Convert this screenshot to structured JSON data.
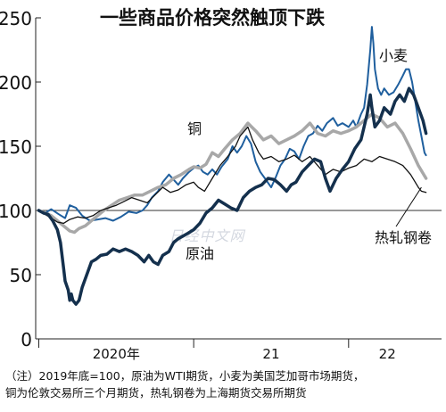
{
  "chart_data": {
    "type": "line",
    "title": "一些商品价格突然触顶下跌",
    "xlabel": "",
    "ylabel": "",
    "ylim": [
      0,
      250
    ],
    "yticks": [
      0,
      50,
      100,
      150,
      200,
      250
    ],
    "x_tick_labels": [
      "2020年",
      "21",
      "22"
    ],
    "x_tick_positions": [
      2020.5,
      2021.5,
      2022.25
    ],
    "xlim": [
      2019.98,
      2022.6
    ],
    "baseline": 100,
    "grid": false,
    "legend": "inline",
    "watermark": "日经中文网",
    "series": [
      {
        "name": "小麦",
        "color": "#1f5f9e",
        "width": 2.0,
        "points": [
          [
            2020.0,
            100
          ],
          [
            2020.04,
            98
          ],
          [
            2020.08,
            101
          ],
          [
            2020.13,
            97
          ],
          [
            2020.17,
            94
          ],
          [
            2020.2,
            104
          ],
          [
            2020.24,
            102
          ],
          [
            2020.28,
            96
          ],
          [
            2020.33,
            92
          ],
          [
            2020.38,
            93
          ],
          [
            2020.43,
            94
          ],
          [
            2020.48,
            92
          ],
          [
            2020.53,
            95
          ],
          [
            2020.58,
            99
          ],
          [
            2020.63,
            98
          ],
          [
            2020.67,
            100
          ],
          [
            2020.7,
            104
          ],
          [
            2020.73,
            110
          ],
          [
            2020.77,
            115
          ],
          [
            2020.8,
            122
          ],
          [
            2020.84,
            128
          ],
          [
            2020.87,
            124
          ],
          [
            2020.9,
            120
          ],
          [
            2020.93,
            125
          ],
          [
            2020.97,
            130
          ],
          [
            2021.0,
            133
          ],
          [
            2021.03,
            135
          ],
          [
            2021.06,
            130
          ],
          [
            2021.09,
            128
          ],
          [
            2021.12,
            132
          ],
          [
            2021.15,
            128
          ],
          [
            2021.18,
            134
          ],
          [
            2021.22,
            140
          ],
          [
            2021.25,
            150
          ],
          [
            2021.28,
            145
          ],
          [
            2021.31,
            150
          ],
          [
            2021.34,
            158
          ],
          [
            2021.37,
            152
          ],
          [
            2021.4,
            138
          ],
          [
            2021.43,
            130
          ],
          [
            2021.46,
            125
          ],
          [
            2021.5,
            118
          ],
          [
            2021.53,
            126
          ],
          [
            2021.56,
            135
          ],
          [
            2021.59,
            140
          ],
          [
            2021.62,
            148
          ],
          [
            2021.65,
            146
          ],
          [
            2021.68,
            140
          ],
          [
            2021.71,
            150
          ],
          [
            2021.74,
            158
          ],
          [
            2021.77,
            160
          ],
          [
            2021.8,
            166
          ],
          [
            2021.83,
            162
          ],
          [
            2021.86,
            168
          ],
          [
            2021.9,
            172
          ],
          [
            2021.93,
            166
          ],
          [
            2021.96,
            168
          ],
          [
            2022.0,
            165
          ],
          [
            2022.03,
            170
          ],
          [
            2022.05,
            165
          ],
          [
            2022.08,
            175
          ],
          [
            2022.1,
            180
          ],
          [
            2022.12,
            198
          ],
          [
            2022.14,
            225
          ],
          [
            2022.15,
            243
          ],
          [
            2022.16,
            230
          ],
          [
            2022.17,
            210
          ],
          [
            2022.19,
            195
          ],
          [
            2022.21,
            190
          ],
          [
            2022.23,
            195
          ],
          [
            2022.26,
            190
          ],
          [
            2022.29,
            192
          ],
          [
            2022.32,
            198
          ],
          [
            2022.35,
            205
          ],
          [
            2022.37,
            210
          ],
          [
            2022.39,
            210
          ],
          [
            2022.41,
            200
          ],
          [
            2022.43,
            185
          ],
          [
            2022.45,
            170
          ],
          [
            2022.47,
            158
          ],
          [
            2022.49,
            145
          ],
          [
            2022.5,
            143
          ]
        ]
      },
      {
        "name": "铜",
        "color": "#a8a8a8",
        "width": 3.5,
        "points": [
          [
            2020.0,
            100
          ],
          [
            2020.04,
            98
          ],
          [
            2020.08,
            96
          ],
          [
            2020.12,
            92
          ],
          [
            2020.16,
            88
          ],
          [
            2020.2,
            84
          ],
          [
            2020.23,
            83
          ],
          [
            2020.26,
            86
          ],
          [
            2020.3,
            88
          ],
          [
            2020.34,
            92
          ],
          [
            2020.38,
            96
          ],
          [
            2020.42,
            100
          ],
          [
            2020.47,
            104
          ],
          [
            2020.52,
            108
          ],
          [
            2020.57,
            110
          ],
          [
            2020.62,
            112
          ],
          [
            2020.67,
            112
          ],
          [
            2020.72,
            115
          ],
          [
            2020.77,
            118
          ],
          [
            2020.82,
            120
          ],
          [
            2020.87,
            125
          ],
          [
            2020.92,
            128
          ],
          [
            2020.97,
            132
          ],
          [
            2021.0,
            134
          ],
          [
            2021.04,
            133
          ],
          [
            2021.08,
            136
          ],
          [
            2021.12,
            145
          ],
          [
            2021.16,
            142
          ],
          [
            2021.2,
            148
          ],
          [
            2021.25,
            155
          ],
          [
            2021.3,
            160
          ],
          [
            2021.35,
            168
          ],
          [
            2021.4,
            162
          ],
          [
            2021.45,
            155
          ],
          [
            2021.5,
            158
          ],
          [
            2021.55,
            152
          ],
          [
            2021.6,
            155
          ],
          [
            2021.65,
            158
          ],
          [
            2021.7,
            162
          ],
          [
            2021.75,
            168
          ],
          [
            2021.8,
            160
          ],
          [
            2021.85,
            158
          ],
          [
            2021.9,
            162
          ],
          [
            2021.95,
            160
          ],
          [
            2022.0,
            162
          ],
          [
            2022.05,
            165
          ],
          [
            2022.1,
            170
          ],
          [
            2022.15,
            175
          ],
          [
            2022.2,
            172
          ],
          [
            2022.25,
            165
          ],
          [
            2022.3,
            168
          ],
          [
            2022.35,
            160
          ],
          [
            2022.4,
            148
          ],
          [
            2022.45,
            135
          ],
          [
            2022.5,
            125
          ]
        ]
      },
      {
        "name": "热轧钢卷",
        "color": "#111111",
        "width": 1.3,
        "points": [
          [
            2020.0,
            100
          ],
          [
            2020.04,
            97
          ],
          [
            2020.08,
            94
          ],
          [
            2020.12,
            91
          ],
          [
            2020.16,
            90
          ],
          [
            2020.2,
            93
          ],
          [
            2020.25,
            95
          ],
          [
            2020.3,
            94
          ],
          [
            2020.35,
            96
          ],
          [
            2020.4,
            100
          ],
          [
            2020.45,
            102
          ],
          [
            2020.5,
            104
          ],
          [
            2020.55,
            107
          ],
          [
            2020.6,
            110
          ],
          [
            2020.65,
            108
          ],
          [
            2020.7,
            106
          ],
          [
            2020.75,
            112
          ],
          [
            2020.8,
            118
          ],
          [
            2020.85,
            114
          ],
          [
            2020.9,
            116
          ],
          [
            2020.95,
            120
          ],
          [
            2021.0,
            122
          ],
          [
            2021.03,
            118
          ],
          [
            2021.07,
            115
          ],
          [
            2021.12,
            125
          ],
          [
            2021.17,
            135
          ],
          [
            2021.22,
            142
          ],
          [
            2021.27,
            150
          ],
          [
            2021.3,
            158
          ],
          [
            2021.35,
            165
          ],
          [
            2021.38,
            155
          ],
          [
            2021.42,
            145
          ],
          [
            2021.45,
            140
          ],
          [
            2021.5,
            142
          ],
          [
            2021.55,
            138
          ],
          [
            2021.6,
            140
          ],
          [
            2021.65,
            143
          ],
          [
            2021.7,
            138
          ],
          [
            2021.75,
            142
          ],
          [
            2021.8,
            135
          ],
          [
            2021.85,
            128
          ],
          [
            2021.9,
            132
          ],
          [
            2021.95,
            130
          ],
          [
            2022.0,
            133
          ],
          [
            2022.05,
            135
          ],
          [
            2022.1,
            140
          ],
          [
            2022.15,
            138
          ],
          [
            2022.2,
            142
          ],
          [
            2022.25,
            140
          ],
          [
            2022.3,
            138
          ],
          [
            2022.35,
            135
          ],
          [
            2022.4,
            128
          ],
          [
            2022.45,
            118
          ],
          [
            2022.47,
            115
          ],
          [
            2022.5,
            114
          ]
        ]
      },
      {
        "name": "原油",
        "color": "#14304d",
        "width": 3.5,
        "points": [
          [
            2020.0,
            100
          ],
          [
            2020.03,
            98
          ],
          [
            2020.06,
            97
          ],
          [
            2020.09,
            92
          ],
          [
            2020.12,
            85
          ],
          [
            2020.14,
            75
          ],
          [
            2020.16,
            55
          ],
          [
            2020.17,
            45
          ],
          [
            2020.19,
            38
          ],
          [
            2020.2,
            30
          ],
          [
            2020.21,
            35
          ],
          [
            2020.22,
            30
          ],
          [
            2020.24,
            27
          ],
          [
            2020.26,
            30
          ],
          [
            2020.28,
            40
          ],
          [
            2020.31,
            50
          ],
          [
            2020.34,
            60
          ],
          [
            2020.37,
            62
          ],
          [
            2020.4,
            65
          ],
          [
            2020.44,
            66
          ],
          [
            2020.48,
            70
          ],
          [
            2020.52,
            68
          ],
          [
            2020.56,
            70
          ],
          [
            2020.6,
            68
          ],
          [
            2020.64,
            65
          ],
          [
            2020.68,
            60
          ],
          [
            2020.71,
            65
          ],
          [
            2020.74,
            60
          ],
          [
            2020.77,
            58
          ],
          [
            2020.8,
            65
          ],
          [
            2020.84,
            68
          ],
          [
            2020.87,
            75
          ],
          [
            2020.9,
            78
          ],
          [
            2020.93,
            80
          ],
          [
            2020.96,
            82
          ],
          [
            2021.0,
            85
          ],
          [
            2021.04,
            90
          ],
          [
            2021.08,
            98
          ],
          [
            2021.12,
            102
          ],
          [
            2021.16,
            108
          ],
          [
            2021.2,
            105
          ],
          [
            2021.24,
            102
          ],
          [
            2021.28,
            100
          ],
          [
            2021.32,
            110
          ],
          [
            2021.36,
            115
          ],
          [
            2021.4,
            118
          ],
          [
            2021.44,
            120
          ],
          [
            2021.48,
            125
          ],
          [
            2021.52,
            124
          ],
          [
            2021.56,
            120
          ],
          [
            2021.6,
            115
          ],
          [
            2021.63,
            120
          ],
          [
            2021.66,
            122
          ],
          [
            2021.7,
            130
          ],
          [
            2021.74,
            135
          ],
          [
            2021.78,
            140
          ],
          [
            2021.82,
            138
          ],
          [
            2021.85,
            125
          ],
          [
            2021.88,
            115
          ],
          [
            2021.92,
            125
          ],
          [
            2021.96,
            132
          ],
          [
            2022.0,
            138
          ],
          [
            2022.04,
            148
          ],
          [
            2022.08,
            155
          ],
          [
            2022.12,
            175
          ],
          [
            2022.14,
            190
          ],
          [
            2022.15,
            180
          ],
          [
            2022.17,
            165
          ],
          [
            2022.2,
            170
          ],
          [
            2022.23,
            180
          ],
          [
            2022.27,
            175
          ],
          [
            2022.3,
            185
          ],
          [
            2022.33,
            190
          ],
          [
            2022.36,
            185
          ],
          [
            2022.39,
            195
          ],
          [
            2022.42,
            190
          ],
          [
            2022.45,
            180
          ],
          [
            2022.48,
            170
          ],
          [
            2022.5,
            160
          ]
        ]
      }
    ],
    "annotations": [
      {
        "text": "小麦",
        "series": "小麦"
      },
      {
        "text": "铜",
        "series": "铜"
      },
      {
        "text": "原油",
        "series": "原油"
      },
      {
        "text": "热轧钢卷",
        "series": "热轧钢卷"
      }
    ]
  },
  "note": {
    "line1": "（注）2019年底=100，原油为WTI期货，小麦为美国芝加哥市场期货，",
    "line2": "铜为伦敦交易所三个月期货，热轧钢卷为上海期货交易所期货"
  }
}
